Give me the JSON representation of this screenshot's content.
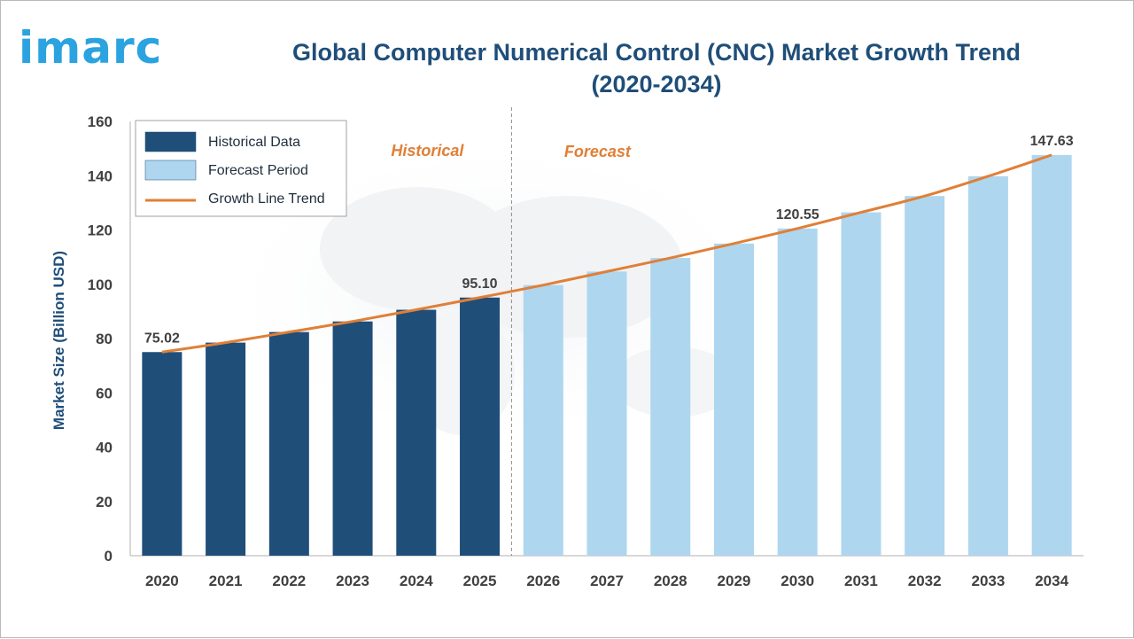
{
  "brand": {
    "logo_text": "imarc"
  },
  "chart_data": {
    "type": "bar",
    "title": "Global Computer Numerical Control (CNC) Market Growth Trend (2020-2034)",
    "ylabel": "Market Size (Billion USD)",
    "xlabel": "",
    "ylim": [
      0,
      160
    ],
    "yticks": [
      0,
      20,
      40,
      60,
      80,
      100,
      120,
      140,
      160
    ],
    "categories": [
      "2020",
      "2021",
      "2022",
      "2023",
      "2024",
      "2025",
      "2026",
      "2027",
      "2028",
      "2029",
      "2030",
      "2031",
      "2032",
      "2033",
      "2034"
    ],
    "series": [
      {
        "name": "Historical Data",
        "color": "#1f4e79",
        "values": [
          75.02,
          78.5,
          82.4,
          86.3,
          90.6,
          95.1,
          null,
          null,
          null,
          null,
          null,
          null,
          null,
          null,
          null
        ]
      },
      {
        "name": "Forecast Period",
        "color": "#aed6ef",
        "values": [
          null,
          null,
          null,
          null,
          null,
          null,
          99.7,
          104.7,
          109.7,
          115.0,
          120.55,
          126.5,
          132.5,
          139.8,
          147.63
        ]
      },
      {
        "name": "Growth Line Trend",
        "type": "line",
        "color": "#e07f36",
        "values": [
          75.02,
          78.5,
          82.4,
          86.3,
          90.6,
          95.1,
          99.7,
          104.7,
          109.7,
          115.0,
          120.55,
          126.5,
          132.5,
          139.8,
          147.63
        ]
      }
    ],
    "data_labels": [
      {
        "index": 0,
        "text": "75.02"
      },
      {
        "index": 5,
        "text": "95.10"
      },
      {
        "index": 10,
        "text": "120.55"
      },
      {
        "index": 14,
        "text": "147.63"
      }
    ],
    "annotations": {
      "historical": "Historical",
      "forecast": "Forecast"
    },
    "legend_position": "top-left",
    "grid": false
  }
}
